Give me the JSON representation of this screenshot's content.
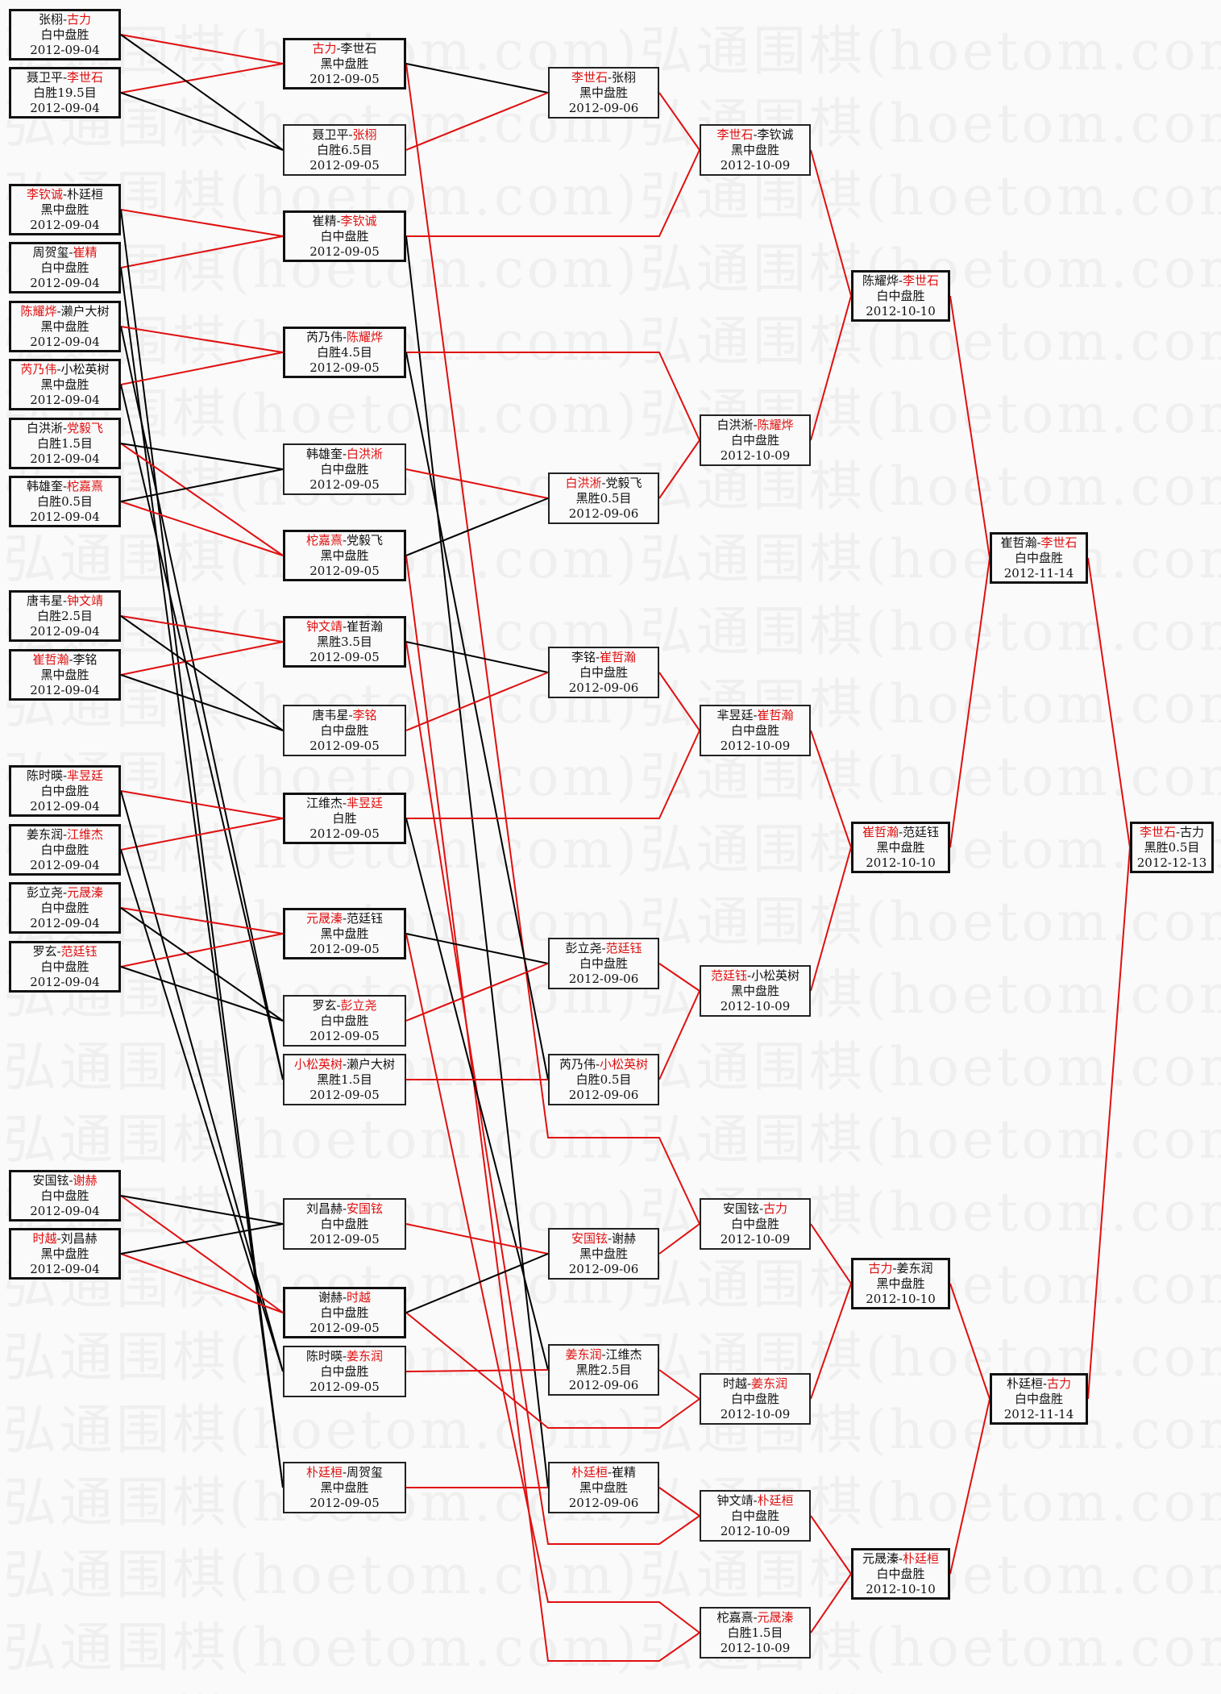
{
  "watermark": "弘通围棋(hoetom.com)弘通围棋(hoetom.com)",
  "colors": {
    "winner": "#e01010",
    "advance_line": "#e01010",
    "drop_line": "#000000",
    "text": "#111111"
  },
  "rounds": [
    [
      {
        "players": [
          "张栩",
          "古力"
        ],
        "winner": 1,
        "result": "白中盘胜",
        "date": "2012-09-04"
      },
      {
        "players": [
          "聂卫平",
          "李世石"
        ],
        "winner": 1,
        "result": "白胜19.5目",
        "date": "2012-09-04"
      },
      {
        "players": [
          "李钦诚",
          "朴廷桓"
        ],
        "winner": 0,
        "result": "黑中盘胜",
        "date": "2012-09-04"
      },
      {
        "players": [
          "周贺玺",
          "崔精"
        ],
        "winner": 1,
        "result": "白中盘胜",
        "date": "2012-09-04"
      },
      {
        "players": [
          "陈耀烨",
          "濑户大树"
        ],
        "winner": 0,
        "result": "黑中盘胜",
        "date": "2012-09-04"
      },
      {
        "players": [
          "芮乃伟",
          "小松英树"
        ],
        "winner": 0,
        "result": "黑中盘胜",
        "date": "2012-09-04"
      },
      {
        "players": [
          "白洪淅",
          "党毅飞"
        ],
        "winner": 1,
        "result": "白胜1.5目",
        "date": "2012-09-04"
      },
      {
        "players": [
          "韩雄奎",
          "柁嘉熹"
        ],
        "winner": 1,
        "result": "白胜0.5目",
        "date": "2012-09-04"
      },
      {
        "players": [
          "唐韦星",
          "钟文靖"
        ],
        "winner": 1,
        "result": "白胜2.5目",
        "date": "2012-09-04"
      },
      {
        "players": [
          "崔哲瀚",
          "李铭"
        ],
        "winner": 0,
        "result": "黑中盘胜",
        "date": "2012-09-04"
      },
      {
        "players": [
          "陈时暎",
          "芈昱廷"
        ],
        "winner": 1,
        "result": "白中盘胜",
        "date": "2012-09-04"
      },
      {
        "players": [
          "姜东润",
          "江维杰"
        ],
        "winner": 1,
        "result": "白中盘胜",
        "date": "2012-09-04"
      },
      {
        "players": [
          "彭立尧",
          "元晟溱"
        ],
        "winner": 1,
        "result": "白中盘胜",
        "date": "2012-09-04"
      },
      {
        "players": [
          "罗玄",
          "范廷钰"
        ],
        "winner": 1,
        "result": "白中盘胜",
        "date": "2012-09-04"
      },
      {
        "players": [
          "安国铉",
          "谢赫"
        ],
        "winner": 1,
        "result": "白中盘胜",
        "date": "2012-09-04"
      },
      {
        "players": [
          "时越",
          "刘昌赫"
        ],
        "winner": 0,
        "result": "黑中盘胜",
        "date": "2012-09-04"
      }
    ],
    [
      {
        "players": [
          "古力",
          "李世石"
        ],
        "winner": 0,
        "result": "黑中盘胜",
        "date": "2012-09-05"
      },
      {
        "players": [
          "聂卫平",
          "张栩"
        ],
        "winner": 1,
        "result": "白胜6.5目",
        "date": "2012-09-05"
      },
      {
        "players": [
          "崔精",
          "李钦诚"
        ],
        "winner": 1,
        "result": "白中盘胜",
        "date": "2012-09-05"
      },
      {
        "players": [
          "芮乃伟",
          "陈耀烨"
        ],
        "winner": 1,
        "result": "白胜4.5目",
        "date": "2012-09-05"
      },
      {
        "players": [
          "韩雄奎",
          "白洪淅"
        ],
        "winner": 1,
        "result": "白中盘胜",
        "date": "2012-09-05"
      },
      {
        "players": [
          "柁嘉熹",
          "党毅飞"
        ],
        "winner": 0,
        "result": "黑中盘胜",
        "date": "2012-09-05"
      },
      {
        "players": [
          "钟文靖",
          "崔哲瀚"
        ],
        "winner": 0,
        "result": "黑胜3.5目",
        "date": "2012-09-05"
      },
      {
        "players": [
          "唐韦星",
          "李铭"
        ],
        "winner": 1,
        "result": "白中盘胜",
        "date": "2012-09-05"
      },
      {
        "players": [
          "江维杰",
          "芈昱廷"
        ],
        "winner": 1,
        "result": "白胜",
        "date": "2012-09-05"
      },
      {
        "players": [
          "元晟溱",
          "范廷钰"
        ],
        "winner": 0,
        "result": "黑中盘胜",
        "date": "2012-09-05"
      },
      {
        "players": [
          "罗玄",
          "彭立尧"
        ],
        "winner": 1,
        "result": "白中盘胜",
        "date": "2012-09-05"
      },
      {
        "players": [
          "小松英树",
          "濑户大树"
        ],
        "winner": 0,
        "result": "黑胜1.5目",
        "date": "2012-09-05"
      },
      {
        "players": [
          "刘昌赫",
          "安国铉"
        ],
        "winner": 1,
        "result": "白中盘胜",
        "date": "2012-09-05"
      },
      {
        "players": [
          "谢赫",
          "时越"
        ],
        "winner": 1,
        "result": "白中盘胜",
        "date": "2012-09-05"
      },
      {
        "players": [
          "陈时暎",
          "姜东润"
        ],
        "winner": 1,
        "result": "白中盘胜",
        "date": "2012-09-05"
      },
      {
        "players": [
          "朴廷桓",
          "周贺玺"
        ],
        "winner": 0,
        "result": "黑中盘胜",
        "date": "2012-09-05"
      }
    ],
    [
      {
        "players": [
          "李世石",
          "张栩"
        ],
        "winner": 0,
        "result": "黑中盘胜",
        "date": "2012-09-06"
      },
      {
        "players": [
          "白洪淅",
          "党毅飞"
        ],
        "winner": 0,
        "result": "黑胜0.5目",
        "date": "2012-09-06"
      },
      {
        "players": [
          "李铭",
          "崔哲瀚"
        ],
        "winner": 1,
        "result": "白中盘胜",
        "date": "2012-09-06"
      },
      {
        "players": [
          "彭立尧",
          "范廷钰"
        ],
        "winner": 1,
        "result": "白中盘胜",
        "date": "2012-09-06"
      },
      {
        "players": [
          "芮乃伟",
          "小松英树"
        ],
        "winner": 1,
        "result": "白胜0.5目",
        "date": "2012-09-06"
      },
      {
        "players": [
          "安国铉",
          "谢赫"
        ],
        "winner": 0,
        "result": "黑中盘胜",
        "date": "2012-09-06"
      },
      {
        "players": [
          "姜东润",
          "江维杰"
        ],
        "winner": 0,
        "result": "黑胜2.5目",
        "date": "2012-09-06"
      },
      {
        "players": [
          "朴廷桓",
          "崔精"
        ],
        "winner": 0,
        "result": "黑中盘胜",
        "date": "2012-09-06"
      }
    ],
    [
      {
        "players": [
          "李世石",
          "李钦诚"
        ],
        "winner": 0,
        "result": "黑中盘胜",
        "date": "2012-10-09"
      },
      {
        "players": [
          "白洪淅",
          "陈耀烨"
        ],
        "winner": 1,
        "result": "白中盘胜",
        "date": "2012-10-09"
      },
      {
        "players": [
          "芈昱廷",
          "崔哲瀚"
        ],
        "winner": 1,
        "result": "白中盘胜",
        "date": "2012-10-09"
      },
      {
        "players": [
          "范廷钰",
          "小松英树"
        ],
        "winner": 0,
        "result": "黑中盘胜",
        "date": "2012-10-09"
      },
      {
        "players": [
          "安国铉",
          "古力"
        ],
        "winner": 1,
        "result": "白中盘胜",
        "date": "2012-10-09"
      },
      {
        "players": [
          "时越",
          "姜东润"
        ],
        "winner": 1,
        "result": "白中盘胜",
        "date": "2012-10-09"
      },
      {
        "players": [
          "钟文靖",
          "朴廷桓"
        ],
        "winner": 1,
        "result": "白中盘胜",
        "date": "2012-10-09"
      },
      {
        "players": [
          "柁嘉熹",
          "元晟溱"
        ],
        "winner": 1,
        "result": "白胜1.5目",
        "date": "2012-10-09"
      }
    ],
    [
      {
        "players": [
          "陈耀烨",
          "李世石"
        ],
        "winner": 1,
        "result": "白中盘胜",
        "date": "2012-10-10"
      },
      {
        "players": [
          "崔哲瀚",
          "范廷钰"
        ],
        "winner": 0,
        "result": "黑中盘胜",
        "date": "2012-10-10"
      },
      {
        "players": [
          "古力",
          "姜东润"
        ],
        "winner": 0,
        "result": "黑中盘胜",
        "date": "2012-10-10"
      },
      {
        "players": [
          "元晟溱",
          "朴廷桓"
        ],
        "winner": 1,
        "result": "白中盘胜",
        "date": "2012-10-10"
      }
    ],
    [
      {
        "players": [
          "崔哲瀚",
          "李世石"
        ],
        "winner": 1,
        "result": "白中盘胜",
        "date": "2012-11-14"
      },
      {
        "players": [
          "朴廷桓",
          "古力"
        ],
        "winner": 1,
        "result": "白中盘胜",
        "date": "2012-11-14"
      }
    ],
    [
      {
        "players": [
          "李世石",
          "古力"
        ],
        "winner": 0,
        "result": "黑胜0.5目",
        "date": "2012-12-13"
      }
    ]
  ]
}
